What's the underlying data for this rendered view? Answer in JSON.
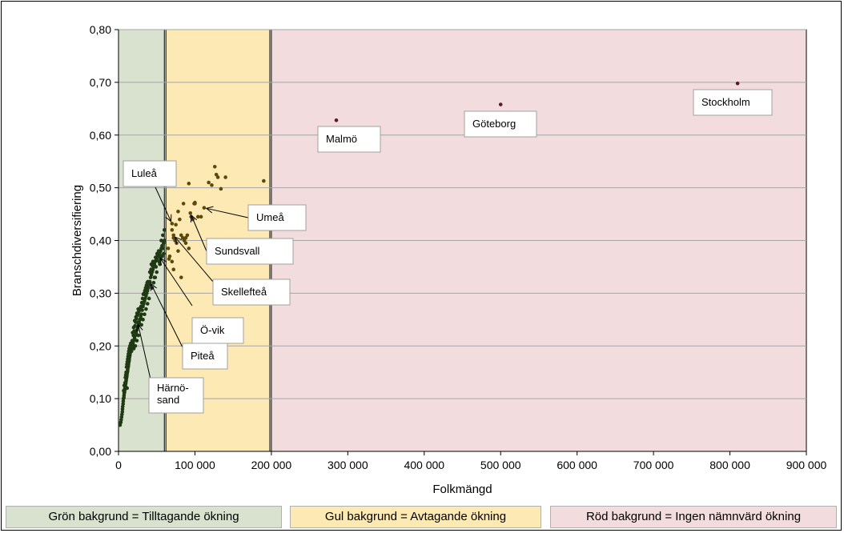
{
  "chart_data": {
    "type": "scatter",
    "xlabel": "Folkmängd",
    "ylabel": "Branschdiversifiering",
    "xlim": [
      0,
      900000
    ],
    "ylim": [
      0,
      0.8
    ],
    "xticks": [
      0,
      100000,
      200000,
      300000,
      400000,
      500000,
      600000,
      700000,
      800000,
      900000
    ],
    "xtick_labels": [
      "0",
      "100 000",
      "200 000",
      "300 000",
      "400 000",
      "500 000",
      "600 000",
      "700 000",
      "800 000",
      "900 000"
    ],
    "yticks": [
      0,
      0.1,
      0.2,
      0.3,
      0.4,
      0.5,
      0.6,
      0.7,
      0.8
    ],
    "ytick_labels": [
      "0,00",
      "0,10",
      "0,20",
      "0,30",
      "0,40",
      "0,50",
      "0,60",
      "0,70",
      "0,80"
    ],
    "grid": "horizontal",
    "regions": [
      {
        "name": "green",
        "x0": 0,
        "x1": 60000,
        "color": "#d9e2cf"
      },
      {
        "name": "yellow",
        "x0": 62000,
        "x1": 198000,
        "color": "#fde9b3"
      },
      {
        "name": "red",
        "x0": 200000,
        "x1": 900000,
        "color": "#f3dcdd"
      }
    ],
    "colors": {
      "green_points": "#1f3a12",
      "yellow_points": "#5c4a0c",
      "red_points": "#5a1a2a",
      "grid": "#a6a6a6"
    },
    "labeled_points": [
      {
        "label": "Stockholm",
        "x": 810000,
        "y": 0.698
      },
      {
        "label": "Göteborg",
        "x": 500000,
        "y": 0.658
      },
      {
        "label": "Malmö",
        "x": 285000,
        "y": 0.628
      },
      {
        "label": "Umeå",
        "x": 112000,
        "y": 0.462
      },
      {
        "label": "Sundsvall",
        "x": 94000,
        "y": 0.452
      },
      {
        "label": "Luleå",
        "x": 70000,
        "y": 0.432
      },
      {
        "label": "Skellefteå",
        "x": 72000,
        "y": 0.41
      },
      {
        "label": "Ö-vik",
        "x": 53000,
        "y": 0.37
      },
      {
        "label": "Piteå",
        "x": 41000,
        "y": 0.322
      },
      {
        "label": "Härnö-\nsand",
        "x": 25000,
        "y": 0.245
      }
    ],
    "points": [
      [
        2000,
        0.05
      ],
      [
        3000,
        0.055
      ],
      [
        3500,
        0.06
      ],
      [
        4000,
        0.065
      ],
      [
        4500,
        0.07
      ],
      [
        5000,
        0.075
      ],
      [
        5200,
        0.08
      ],
      [
        5500,
        0.085
      ],
      [
        6000,
        0.09
      ],
      [
        6200,
        0.095
      ],
      [
        6500,
        0.1
      ],
      [
        7000,
        0.102
      ],
      [
        7200,
        0.106
      ],
      [
        7500,
        0.11
      ],
      [
        7800,
        0.112
      ],
      [
        8000,
        0.115
      ],
      [
        8200,
        0.118
      ],
      [
        8500,
        0.12
      ],
      [
        8800,
        0.122
      ],
      [
        9000,
        0.125
      ],
      [
        9200,
        0.128
      ],
      [
        9500,
        0.13
      ],
      [
        9800,
        0.133
      ],
      [
        10000,
        0.135
      ],
      [
        10200,
        0.138
      ],
      [
        10500,
        0.14
      ],
      [
        10800,
        0.142
      ],
      [
        11000,
        0.145
      ],
      [
        11200,
        0.148
      ],
      [
        11500,
        0.15
      ],
      [
        11800,
        0.152
      ],
      [
        12000,
        0.155
      ],
      [
        12200,
        0.158
      ],
      [
        12500,
        0.16
      ],
      [
        12800,
        0.162
      ],
      [
        13000,
        0.165
      ],
      [
        13200,
        0.168
      ],
      [
        13500,
        0.17
      ],
      [
        13800,
        0.172
      ],
      [
        14000,
        0.175
      ],
      [
        14200,
        0.178
      ],
      [
        14500,
        0.18
      ],
      [
        14800,
        0.182
      ],
      [
        15000,
        0.185
      ],
      [
        15500,
        0.188
      ],
      [
        16000,
        0.19
      ],
      [
        16500,
        0.192
      ],
      [
        17000,
        0.195
      ],
      [
        17500,
        0.198
      ],
      [
        18000,
        0.2
      ],
      [
        9000,
        0.14
      ],
      [
        10000,
        0.15
      ],
      [
        11000,
        0.165
      ],
      [
        12000,
        0.175
      ],
      [
        13000,
        0.185
      ],
      [
        14000,
        0.195
      ],
      [
        15000,
        0.2
      ],
      [
        16000,
        0.205
      ],
      [
        17000,
        0.19
      ],
      [
        18000,
        0.21
      ],
      [
        8500,
        0.13
      ],
      [
        9500,
        0.145
      ],
      [
        10500,
        0.16
      ],
      [
        11500,
        0.17
      ],
      [
        12500,
        0.18
      ],
      [
        13500,
        0.19
      ],
      [
        14500,
        0.195
      ],
      [
        7500,
        0.125
      ],
      [
        6800,
        0.115
      ],
      [
        11200,
        0.12
      ],
      [
        19000,
        0.205
      ],
      [
        20000,
        0.21
      ],
      [
        21000,
        0.215
      ],
      [
        22000,
        0.22
      ],
      [
        23000,
        0.225
      ],
      [
        24000,
        0.23
      ],
      [
        25000,
        0.235
      ],
      [
        26000,
        0.24
      ],
      [
        27000,
        0.245
      ],
      [
        28000,
        0.25
      ],
      [
        19500,
        0.22
      ],
      [
        20500,
        0.228
      ],
      [
        21500,
        0.238
      ],
      [
        22500,
        0.245
      ],
      [
        23500,
        0.252
      ],
      [
        24500,
        0.258
      ],
      [
        25500,
        0.26
      ],
      [
        26500,
        0.265
      ],
      [
        27500,
        0.268
      ],
      [
        28500,
        0.272
      ],
      [
        18500,
        0.225
      ],
      [
        19800,
        0.235
      ],
      [
        21200,
        0.248
      ],
      [
        22800,
        0.255
      ],
      [
        24200,
        0.262
      ],
      [
        25800,
        0.27
      ],
      [
        20000,
        0.195
      ],
      [
        22000,
        0.2
      ],
      [
        24000,
        0.21
      ],
      [
        26000,
        0.22
      ],
      [
        29000,
        0.255
      ],
      [
        30000,
        0.26
      ],
      [
        31000,
        0.268
      ],
      [
        32000,
        0.275
      ],
      [
        33000,
        0.28
      ],
      [
        34000,
        0.285
      ],
      [
        35000,
        0.29
      ],
      [
        36000,
        0.295
      ],
      [
        37000,
        0.3
      ],
      [
        38000,
        0.305
      ],
      [
        29500,
        0.275
      ],
      [
        30500,
        0.282
      ],
      [
        31500,
        0.29
      ],
      [
        32500,
        0.298
      ],
      [
        33500,
        0.3
      ],
      [
        34500,
        0.305
      ],
      [
        35500,
        0.31
      ],
      [
        36500,
        0.315
      ],
      [
        37500,
        0.32
      ],
      [
        38500,
        0.322
      ],
      [
        30000,
        0.24
      ],
      [
        32000,
        0.25
      ],
      [
        34000,
        0.26
      ],
      [
        36000,
        0.27
      ],
      [
        38000,
        0.28
      ],
      [
        40000,
        0.29
      ],
      [
        39000,
        0.31
      ],
      [
        40000,
        0.315
      ],
      [
        41000,
        0.32
      ],
      [
        42000,
        0.33
      ],
      [
        43000,
        0.335
      ],
      [
        44000,
        0.34
      ],
      [
        45000,
        0.345
      ],
      [
        46000,
        0.35
      ],
      [
        47000,
        0.355
      ],
      [
        48000,
        0.36
      ],
      [
        49000,
        0.362
      ],
      [
        50000,
        0.365
      ],
      [
        51000,
        0.37
      ],
      [
        52000,
        0.372
      ],
      [
        42500,
        0.345
      ],
      [
        44500,
        0.352
      ],
      [
        46500,
        0.36
      ],
      [
        48500,
        0.368
      ],
      [
        50500,
        0.375
      ],
      [
        52500,
        0.38
      ],
      [
        54000,
        0.375
      ],
      [
        55000,
        0.38
      ],
      [
        56000,
        0.385
      ],
      [
        57000,
        0.39
      ],
      [
        58000,
        0.385
      ],
      [
        59000,
        0.395
      ],
      [
        60000,
        0.4
      ],
      [
        41000,
        0.34
      ],
      [
        43000,
        0.355
      ],
      [
        45000,
        0.36
      ],
      [
        47000,
        0.33
      ],
      [
        49000,
        0.35
      ],
      [
        53000,
        0.36
      ],
      [
        55000,
        0.365
      ],
      [
        57000,
        0.37
      ],
      [
        59000,
        0.375
      ],
      [
        56000,
        0.4
      ],
      [
        58000,
        0.41
      ],
      [
        60000,
        0.42
      ],
      [
        54000,
        0.355
      ],
      [
        44000,
        0.31
      ],
      [
        46000,
        0.32
      ],
      [
        48000,
        0.33
      ],
      [
        50000,
        0.34
      ],
      [
        65000,
        0.385
      ],
      [
        67000,
        0.37
      ],
      [
        70000,
        0.36
      ],
      [
        72000,
        0.405
      ],
      [
        74000,
        0.4
      ],
      [
        76000,
        0.395
      ],
      [
        78000,
        0.38
      ],
      [
        80000,
        0.44
      ],
      [
        82000,
        0.41
      ],
      [
        84000,
        0.405
      ],
      [
        86000,
        0.4
      ],
      [
        88000,
        0.395
      ],
      [
        90000,
        0.41
      ],
      [
        92000,
        0.385
      ],
      [
        95000,
        0.445
      ],
      [
        97000,
        0.44
      ],
      [
        99000,
        0.47
      ],
      [
        100000,
        0.47
      ],
      [
        104000,
        0.445
      ],
      [
        108000,
        0.445
      ],
      [
        85000,
        0.47
      ],
      [
        92000,
        0.508
      ],
      [
        100000,
        0.472
      ],
      [
        118000,
        0.51
      ],
      [
        122000,
        0.505
      ],
      [
        126000,
        0.54
      ],
      [
        128000,
        0.525
      ],
      [
        130000,
        0.52
      ],
      [
        134000,
        0.498
      ],
      [
        140000,
        0.52
      ],
      [
        190000,
        0.513
      ],
      [
        75000,
        0.43
      ],
      [
        78000,
        0.455
      ],
      [
        82000,
        0.33
      ],
      [
        88000,
        0.405
      ],
      [
        70000,
        0.42
      ],
      [
        66000,
        0.365
      ],
      [
        72000,
        0.345
      ]
    ]
  },
  "legend": {
    "green": "Grön bakgrund = Tilltagande ökning",
    "yellow": "Gul bakgrund = Avtagande ökning",
    "red": "Röd bakgrund = Ingen nämnvärd ökning"
  }
}
